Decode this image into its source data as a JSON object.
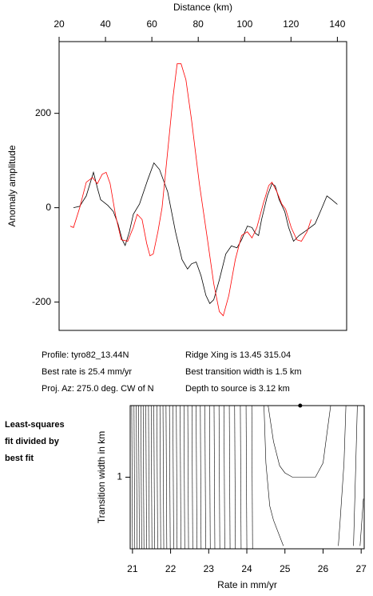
{
  "chart_data": [
    {
      "type": "line",
      "xlabel": "Distance (km)",
      "ylabel": "Anomaly amplitude",
      "xlim": [
        20,
        144
      ],
      "ylim": [
        -260,
        352
      ],
      "xticks": [
        20,
        40,
        60,
        80,
        100,
        120,
        140
      ],
      "yticks": [
        -200,
        0,
        200
      ],
      "annotations": [
        "Profile: tyro82_13.44N",
        "Best rate is 25.4 mm/yr",
        "Proj. Az: 275.0 deg. CW of N",
        "Ridge Xing is 13.45 315.04",
        "Best transition width is 1.5 km",
        "Depth to source is   3.12 km"
      ],
      "series": [
        {
          "color": "#000000",
          "x": [
            26.2,
            28.9,
            31.7,
            34.8,
            36.5,
            37.9,
            41,
            43.4,
            45.4,
            47.2,
            48.5,
            50.3,
            52,
            54.7,
            58.2,
            60.9,
            63.3,
            66.8,
            70.2,
            73,
            75.4,
            77.1,
            79.1,
            81.2,
            83.3,
            85,
            86.7,
            89.1,
            91.9,
            94.3,
            96.7,
            98.7,
            101.2,
            103.2,
            104.6,
            106,
            107.3,
            109.8,
            111.8,
            113.2,
            114.9,
            117.3,
            119,
            121.1,
            123.5,
            126.9,
            130.4,
            133.1,
            135.5,
            137.6,
            140
          ],
          "values": [
            0,
            3,
            25,
            75,
            42,
            17,
            5,
            -8,
            -34,
            -68,
            -80,
            -51,
            -14,
            8,
            59,
            95,
            81,
            34,
            -51,
            -110,
            -130,
            -119,
            -115,
            -144,
            -186,
            -203,
            -195,
            -153,
            -98,
            -81,
            -85,
            -68,
            -39,
            -42,
            -54,
            -59,
            -25,
            25,
            51,
            46,
            17,
            -8,
            -42,
            -71,
            -59,
            -47,
            -34,
            -3,
            25,
            17,
            7
          ]
        },
        {
          "color": "#ff0000",
          "x": [
            24.8,
            26.2,
            28.9,
            31.7,
            34.4,
            36.5,
            38.6,
            40.3,
            42,
            44.4,
            46.8,
            49.6,
            52,
            53.7,
            55.8,
            57.8,
            59.2,
            60.6,
            62.6,
            64.4,
            66.8,
            69.2,
            70.9,
            72.6,
            74.7,
            77.1,
            80.5,
            84,
            86.7,
            89.1,
            90.8,
            93.2,
            96,
            98.7,
            101.2,
            103.2,
            105.3,
            108,
            110.4,
            111.8,
            113.9,
            116,
            117.7,
            120.1,
            122.5,
            124.5,
            126.9,
            128.7
          ],
          "values": [
            -39,
            -42,
            0,
            54,
            64,
            51,
            71,
            75,
            51,
            -17,
            -68,
            -71,
            -42,
            -14,
            -25,
            -76,
            -102,
            -98,
            -51,
            0,
            119,
            237,
            305,
            305,
            271,
            186,
            51,
            -68,
            -161,
            -220,
            -229,
            -186,
            -110,
            -59,
            -51,
            -64,
            -42,
            8,
            47,
            54,
            34,
            8,
            -3,
            -42,
            -68,
            -71,
            -51,
            -25
          ]
        }
      ]
    },
    {
      "type": "contour",
      "title": [
        "Least-squares",
        "fit divided by",
        "best fit"
      ],
      "xlabel": "Rate in mm/yr",
      "ylabel": "Transition width in km",
      "xlim": [
        20.94,
        27.08
      ],
      "ylim": [
        0.5,
        1.5
      ],
      "xticks": [
        21,
        22,
        23,
        24,
        25,
        26,
        27
      ],
      "yticks": [
        1
      ],
      "best": {
        "x": 25.4,
        "y": 1.5
      },
      "vlines": [
        20.98,
        21.04,
        21.1,
        21.16,
        21.22,
        21.28,
        21.35,
        21.42,
        21.49,
        21.56,
        21.64,
        21.72,
        21.8,
        21.88,
        21.97,
        22.06,
        22.15,
        22.25,
        22.35,
        22.45,
        22.56,
        22.67,
        22.78,
        22.9,
        23.02,
        23.14,
        23.27,
        23.4,
        23.54,
        23.68,
        23.83,
        23.98,
        24.13
      ],
      "contours": [
        {
          "x": [
            24.56,
            24.7,
            24.86,
            25.0,
            25.2,
            25.8,
            26.0,
            26.1,
            26.2
          ],
          "y": [
            1.5,
            1.25,
            1.08,
            1.03,
            1.0,
            1.0,
            1.1,
            1.3,
            1.5
          ]
        },
        {
          "x": [
            24.45,
            24.5,
            24.6,
            24.7,
            24.96
          ],
          "y": [
            1.5,
            1.1,
            0.8,
            0.7,
            0.52
          ]
        },
        {
          "x": [
            26.6,
            26.55,
            26.45,
            26.4
          ],
          "y": [
            1.5,
            1.1,
            0.7,
            0.52
          ]
        },
        {
          "x": [
            26.9,
            26.85,
            26.8
          ],
          "y": [
            1.5,
            1.0,
            0.52
          ]
        },
        {
          "x": [
            27.06,
            26.97
          ],
          "y": [
            0.85,
            0.52
          ]
        }
      ]
    }
  ]
}
